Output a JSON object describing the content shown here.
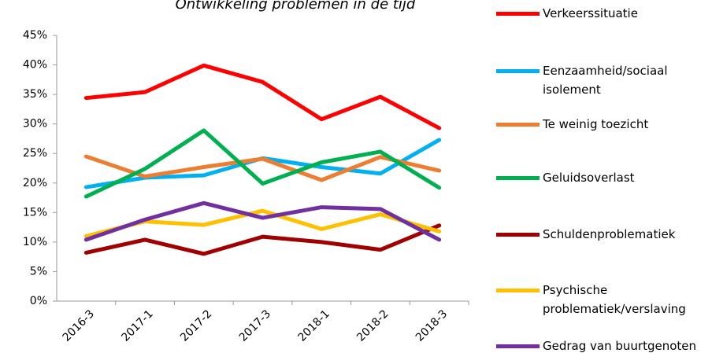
{
  "chart_data": {
    "type": "line",
    "title": "Ontwikkeling problemen in de tijd",
    "categories": [
      "2016-3",
      "2017-1",
      "2017-2",
      "2017-3",
      "2018-1",
      "2018-2",
      "2018-3"
    ],
    "series": [
      {
        "name": "Verkeerssituatie",
        "color": "#ff0000",
        "values": [
          34.4,
          35.4,
          39.9,
          37.1,
          30.8,
          34.6,
          29.3
        ]
      },
      {
        "name": "Eenzaamheid/sociaal isolement",
        "color": "#00b0f0",
        "values": [
          19.3,
          20.9,
          21.3,
          24.2,
          22.7,
          21.6,
          27.3
        ]
      },
      {
        "name": "Te weinig toezicht",
        "color": "#ed7d31",
        "values": [
          24.5,
          21.1,
          22.7,
          24.1,
          20.5,
          24.4,
          22.1
        ]
      },
      {
        "name": "Geluidsoverlast",
        "color": "#00b050",
        "values": [
          17.7,
          22.4,
          28.9,
          19.9,
          23.5,
          25.3,
          19.2
        ]
      },
      {
        "name": "Schuldenproblematiek",
        "color": "#a00000",
        "values": [
          8.2,
          10.4,
          8.0,
          10.9,
          10.0,
          8.7,
          12.8
        ]
      },
      {
        "name": "Psychische problematiek/verslaving",
        "color": "#ffc000",
        "values": [
          11.0,
          13.5,
          12.9,
          15.3,
          12.2,
          14.7,
          11.8
        ]
      },
      {
        "name": "Gedrag van buurtgenoten",
        "color": "#7030a0",
        "values": [
          10.4,
          13.8,
          16.6,
          14.1,
          15.9,
          15.6,
          10.4
        ]
      }
    ],
    "ylim": [
      0,
      45
    ],
    "yticks": [
      {
        "value": 0,
        "label": "0%"
      },
      {
        "value": 5,
        "label": "5%"
      },
      {
        "value": 10,
        "label": "10%"
      },
      {
        "value": 15,
        "label": "15%"
      },
      {
        "value": 20,
        "label": "20%"
      },
      {
        "value": 25,
        "label": "25%"
      },
      {
        "value": 30,
        "label": "30%"
      },
      {
        "value": 35,
        "label": "35%"
      },
      {
        "value": 40,
        "label": "40%"
      },
      {
        "value": 45,
        "label": "45%"
      }
    ],
    "grid": false,
    "legend": "right"
  }
}
